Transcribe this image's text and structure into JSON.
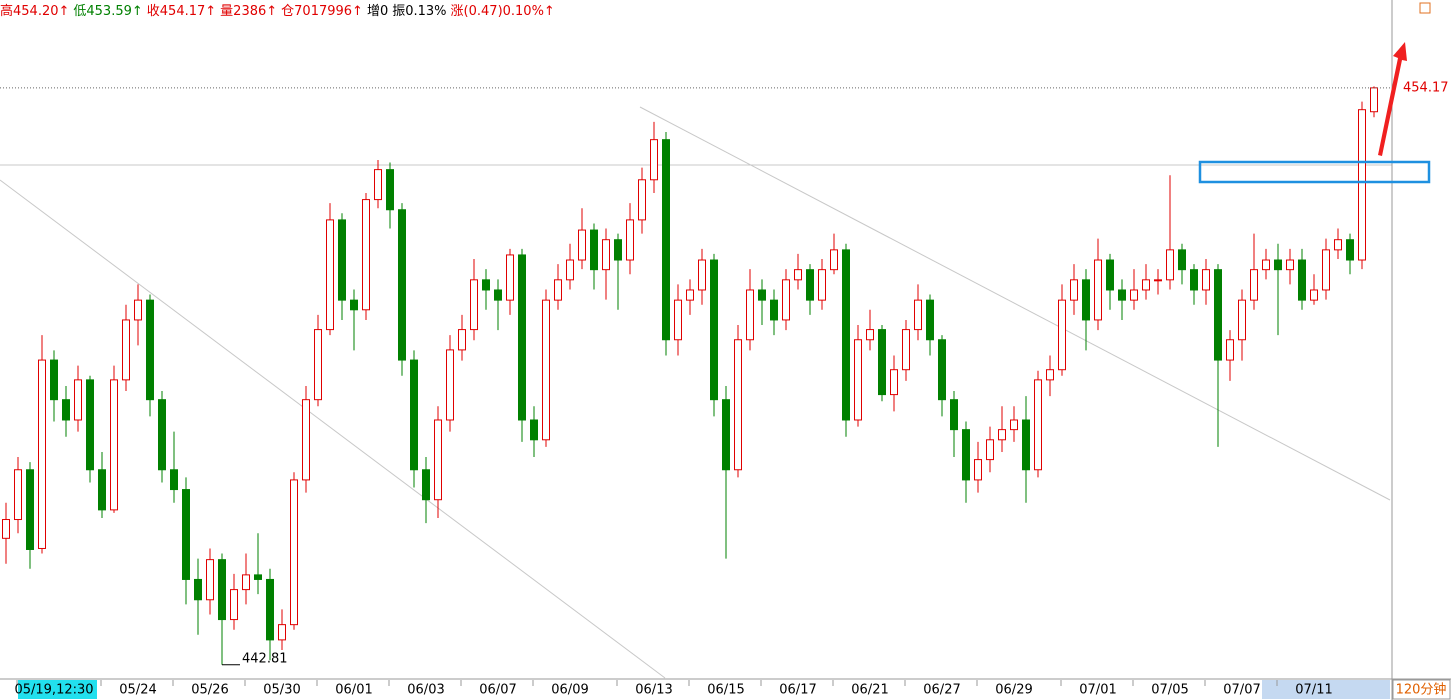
{
  "chart_data": {
    "type": "candlestick",
    "header": [
      {
        "text": "高454.20↑",
        "color": "#e00000"
      },
      {
        "text": "低453.59↑",
        "color": "#008000"
      },
      {
        "text": "收454.17↑",
        "color": "#e00000"
      },
      {
        "text": "量2386↑",
        "color": "#e00000"
      },
      {
        "text": "仓7017996↑",
        "color": "#e00000"
      },
      {
        "text": "增0",
        "color": "#000000"
      },
      {
        "text": "振0.13%",
        "color": "#000000"
      },
      {
        "text": "涨(0.47)0.10%↑",
        "color": "#e00000"
      }
    ],
    "period": "120分钟",
    "up_color": "#e00000",
    "down_color": "#008000",
    "ylim": [
      442.51,
      455.9
    ],
    "categories": [
      null,
      null,
      null,
      null,
      "05/19,12:30",
      null,
      null,
      null,
      null,
      null,
      null,
      "05/24",
      null,
      null,
      null,
      null,
      null,
      "05/26",
      null,
      null,
      null,
      null,
      null,
      "05/30",
      null,
      null,
      null,
      null,
      null,
      "06/01",
      null,
      null,
      null,
      null,
      null,
      "06/03",
      null,
      null,
      null,
      null,
      null,
      "06/07",
      null,
      null,
      null,
      null,
      null,
      "06/09",
      null,
      null,
      null,
      null,
      null,
      null,
      "06/13",
      null,
      null,
      null,
      null,
      null,
      "06/15",
      null,
      null,
      null,
      null,
      null,
      "06/17",
      null,
      null,
      null,
      null,
      null,
      "06/21",
      null,
      null,
      null,
      null,
      null,
      "06/27",
      null,
      null,
      null,
      null,
      null,
      "06/29",
      null,
      null,
      null,
      null,
      null,
      null,
      "07/01",
      null,
      null,
      null,
      null,
      null,
      "07/05",
      null,
      null,
      null,
      null,
      null,
      "07/07",
      null,
      null,
      null,
      null,
      null,
      "07/11",
      null,
      null,
      null,
      null,
      null
    ],
    "open": [
      445.3,
      445.67,
      446.65,
      445.1,
      448.81,
      448.03,
      447.63,
      448.42,
      446.65,
      445.86,
      448.42,
      449.6,
      449.99,
      448.03,
      446.65,
      446.26,
      444.49,
      444.09,
      444.88,
      443.7,
      444.29,
      444.58,
      444.49,
      443.3,
      443.6,
      446.45,
      448.03,
      449.41,
      451.57,
      449.99,
      449.8,
      451.97,
      452.56,
      451.77,
      448.81,
      446.65,
      446.06,
      447.63,
      449.01,
      449.41,
      450.39,
      450.19,
      449.99,
      450.88,
      447.63,
      447.24,
      449.99,
      450.39,
      450.78,
      451.37,
      450.59,
      451.18,
      450.78,
      451.57,
      452.36,
      453.15,
      449.21,
      449.99,
      450.19,
      450.78,
      448.03,
      446.65,
      449.21,
      450.19,
      449.99,
      449.6,
      450.39,
      450.59,
      449.99,
      450.59,
      450.98,
      447.63,
      449.21,
      449.41,
      448.13,
      448.62,
      449.41,
      449.99,
      449.21,
      448.03,
      447.44,
      446.45,
      446.85,
      447.24,
      447.44,
      447.63,
      446.65,
      448.42,
      448.62,
      449.99,
      450.39,
      449.6,
      450.78,
      450.19,
      449.99,
      450.19,
      450.39,
      450.39,
      450.98,
      450.59,
      450.19,
      450.59,
      448.81,
      449.21,
      449.99,
      450.59,
      450.78,
      450.59,
      450.78,
      449.99,
      450.19,
      450.98,
      451.18,
      450.78,
      453.7
    ],
    "high": [
      446.0,
      446.9,
      446.8,
      449.3,
      449.0,
      448.3,
      448.7,
      448.5,
      447.0,
      448.7,
      449.9,
      450.3,
      450.1,
      448.2,
      447.4,
      446.5,
      444.9,
      445.1,
      445.0,
      444.6,
      445.0,
      445.4,
      444.7,
      443.9,
      446.6,
      448.3,
      449.7,
      451.9,
      451.7,
      450.2,
      452.1,
      452.75,
      452.7,
      451.9,
      449.0,
      446.9,
      447.9,
      449.3,
      449.7,
      450.8,
      450.6,
      450.4,
      451.0,
      451.0,
      447.9,
      450.2,
      450.7,
      451.1,
      451.8,
      451.5,
      451.4,
      451.3,
      451.9,
      452.6,
      453.5,
      453.3,
      450.3,
      450.4,
      451.0,
      450.9,
      448.3,
      449.5,
      450.6,
      450.4,
      450.2,
      450.6,
      450.9,
      450.7,
      450.8,
      451.3,
      451.1,
      449.5,
      449.8,
      449.5,
      448.9,
      449.6,
      450.3,
      450.1,
      449.3,
      448.2,
      447.6,
      447.2,
      447.5,
      447.9,
      447.9,
      448.1,
      448.6,
      448.9,
      450.3,
      450.7,
      450.6,
      451.2,
      450.9,
      450.4,
      450.6,
      450.7,
      450.6,
      452.45,
      451.1,
      450.7,
      450.8,
      450.7,
      449.4,
      450.2,
      451.3,
      451.0,
      451.1,
      451.0,
      451.0,
      450.5,
      451.2,
      451.4,
      451.3,
      453.9,
      454.2
    ],
    "low": [
      444.8,
      445.4,
      444.7,
      445.0,
      447.6,
      447.3,
      447.4,
      446.4,
      445.7,
      445.8,
      448.2,
      449.1,
      447.7,
      446.4,
      446.0,
      444.0,
      443.4,
      443.8,
      442.81,
      443.5,
      444.0,
      444.2,
      442.9,
      443.1,
      443.5,
      446.2,
      447.9,
      449.3,
      449.6,
      449.0,
      449.6,
      451.8,
      451.4,
      448.5,
      446.3,
      445.6,
      445.7,
      447.4,
      448.8,
      449.2,
      449.8,
      449.4,
      449.7,
      447.2,
      446.9,
      447.1,
      449.8,
      450.2,
      450.6,
      450.2,
      450.0,
      449.8,
      450.5,
      451.3,
      452.1,
      448.9,
      448.9,
      449.7,
      449.9,
      447.7,
      444.9,
      446.5,
      449.0,
      449.5,
      449.3,
      449.4,
      450.2,
      449.7,
      449.8,
      450.5,
      447.3,
      447.5,
      449.0,
      448.0,
      447.8,
      448.4,
      449.2,
      448.9,
      447.7,
      446.9,
      446.0,
      446.2,
      446.6,
      447.0,
      447.2,
      446.0,
      446.5,
      448.1,
      448.5,
      449.7,
      449.0,
      449.4,
      449.8,
      449.6,
      449.8,
      450.0,
      450.1,
      450.2,
      450.3,
      449.9,
      449.9,
      447.1,
      448.4,
      448.8,
      449.8,
      450.4,
      449.3,
      450.3,
      449.8,
      449.9,
      450.0,
      450.8,
      450.5,
      450.6,
      453.59
    ],
    "close": [
      445.67,
      446.65,
      445.08,
      448.81,
      448.03,
      447.63,
      448.42,
      446.65,
      445.86,
      448.42,
      449.6,
      449.99,
      448.03,
      446.65,
      446.26,
      444.49,
      444.09,
      444.88,
      443.7,
      444.29,
      444.58,
      444.49,
      443.3,
      443.6,
      446.45,
      448.03,
      449.41,
      451.57,
      449.99,
      449.8,
      451.97,
      452.56,
      451.77,
      448.81,
      446.65,
      446.06,
      447.63,
      449.01,
      449.41,
      450.39,
      450.19,
      449.99,
      450.88,
      447.63,
      447.24,
      449.99,
      450.39,
      450.78,
      451.37,
      450.59,
      451.18,
      450.78,
      451.57,
      452.36,
      453.15,
      449.21,
      449.99,
      450.19,
      450.78,
      448.03,
      446.65,
      449.21,
      450.19,
      449.99,
      449.6,
      450.39,
      450.59,
      449.99,
      450.59,
      450.98,
      447.63,
      449.21,
      449.41,
      448.13,
      448.62,
      449.41,
      449.99,
      449.21,
      448.03,
      447.44,
      446.45,
      446.85,
      447.24,
      447.44,
      447.63,
      446.65,
      448.42,
      448.62,
      449.99,
      450.39,
      449.6,
      450.78,
      450.19,
      449.99,
      450.19,
      450.39,
      450.39,
      450.98,
      450.59,
      450.19,
      450.59,
      448.81,
      449.21,
      449.99,
      450.59,
      450.78,
      450.59,
      450.78,
      449.99,
      450.19,
      450.98,
      451.18,
      450.78,
      453.74,
      454.17
    ]
  }
}
